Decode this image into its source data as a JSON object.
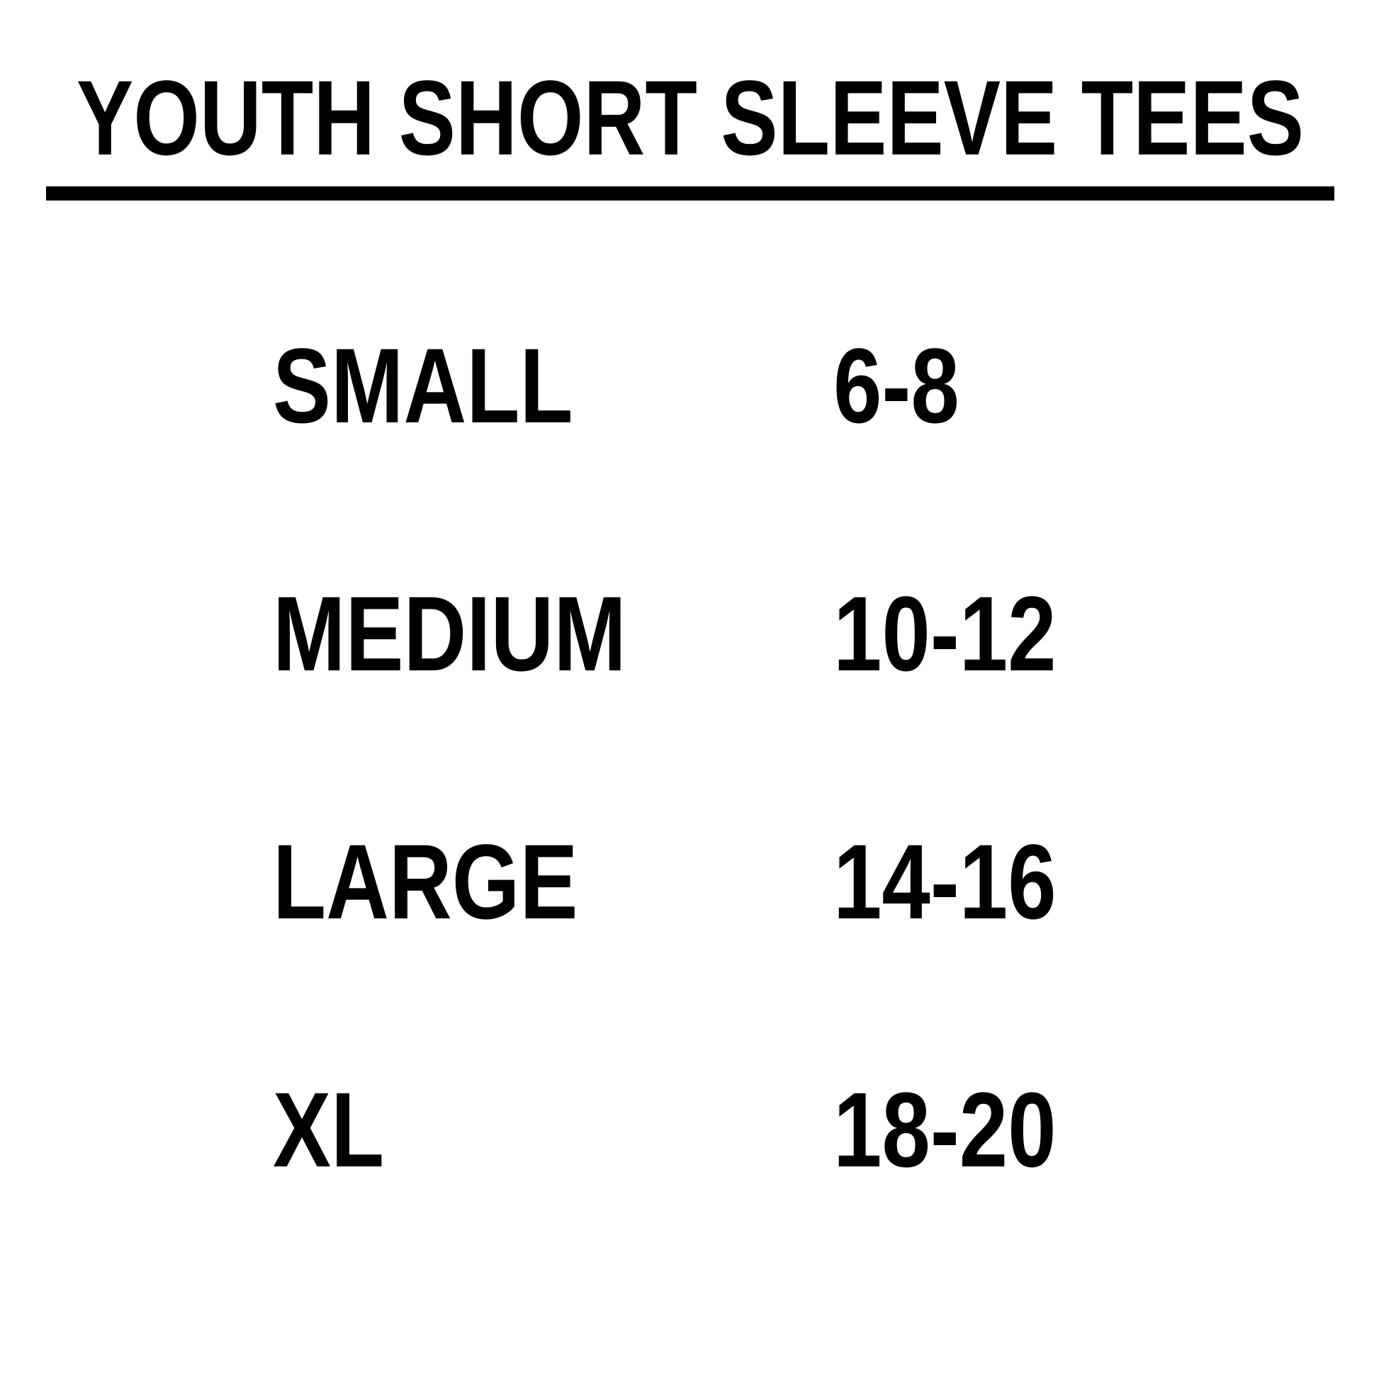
{
  "header": {
    "title": "YOUTH SHORT SLEEVE TEES"
  },
  "table": {
    "rows": [
      [
        "SMALL",
        "6-8"
      ],
      [
        "MEDIUM",
        "10-12"
      ],
      [
        "LARGE",
        "14-16"
      ],
      [
        "XL",
        "18-20"
      ]
    ]
  }
}
